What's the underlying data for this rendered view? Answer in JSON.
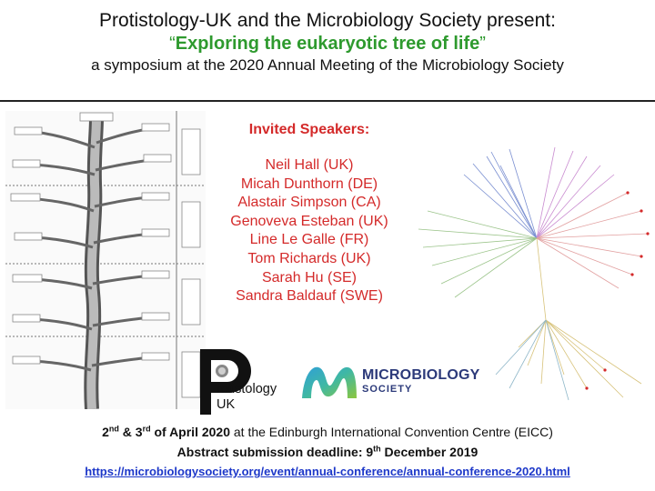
{
  "header": {
    "line1": "Protistology-UK and the Microbiology Society present:",
    "line2_open_quote": "“",
    "line2_title": "Exploring the eukaryotic tree of life",
    "line2_close_quote": "”",
    "line3": "a symposium at the 2020 Annual Meeting of the Microbiology Society"
  },
  "speakers": {
    "heading": "Invited Speakers:",
    "names": [
      "Neil Hall (UK)",
      "Micah Dunthorn (DE)",
      "Alastair Simpson (CA)",
      "Genoveva Esteban (UK)",
      "Line Le Galle (FR)",
      "Tom Richards (UK)",
      "Sarah Hu (SE)",
      "Sandra Baldauf (SWE)"
    ]
  },
  "logos": {
    "protistology_text": "rotistology",
    "protistology_uk": "UK",
    "microbiology_line1": "MICROBIOLOGY",
    "microbiology_line2": "SOCIETY"
  },
  "footer": {
    "date_day1": "2",
    "date_sup1": "nd",
    "date_amp": " & 3",
    "date_sup2": "rd",
    "date_rest": " of April 2020",
    "venue": " at the  Edinburgh International Convention Centre (EICC)",
    "deadline_label": "Abstract submission deadline: 9",
    "deadline_sup": "th",
    "deadline_rest": " December 2019",
    "url": "https://microbiologysociety.org/event/annual-conference/annual-conference-2020.html"
  },
  "colors": {
    "title_green": "#2e9a2e",
    "speaker_red": "#d42a2a",
    "link_blue": "#1d38c9",
    "ms_navy": "#2c3a7a"
  }
}
